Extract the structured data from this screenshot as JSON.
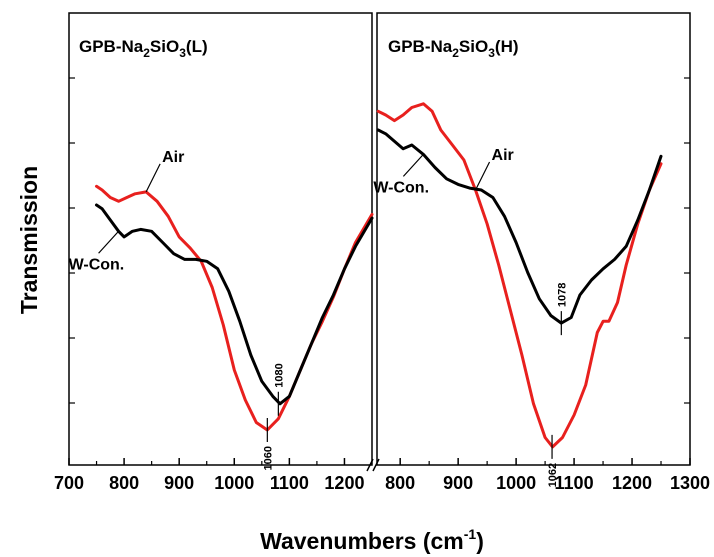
{
  "chart_data": {
    "type": "line",
    "xlabel_main": "Wavenumbers (cm",
    "xlabel_sup": "-1",
    "xlabel_close": ")",
    "ylabel": "Transmission",
    "grid": false,
    "legend": "none",
    "colors": {
      "Air": "#e8201e",
      "W-Con.": "#000000"
    },
    "panels": [
      {
        "title_prefix": "GPB-Na",
        "title_sub1": "2",
        "title_mid": "SiO",
        "title_sub2": "3",
        "title_suffix": "(L)",
        "xlim": [
          700,
          1250
        ],
        "ticks": [
          "700",
          "800",
          "900",
          "1000",
          "1100",
          "1200"
        ],
        "tick_values": [
          700,
          800,
          900,
          1000,
          1100,
          1200
        ],
        "ylim": [
          0,
          100
        ],
        "series": [
          {
            "name": "Air",
            "x": [
              750,
              760,
              775,
              790,
              805,
              820,
              840,
              860,
              880,
              900,
              920,
              940,
              960,
              980,
              1000,
              1020,
              1040,
              1060,
              1080,
              1100,
              1120,
              1140,
              1160,
              1180,
              1200,
              1220,
              1240,
              1250
            ],
            "y": [
              73,
              72,
              70,
              69,
              70,
              71,
              71.5,
              69,
              65,
              59.5,
              56.5,
              53,
              46,
              36,
              24,
              16,
              10,
              8,
              11,
              17,
              24,
              31,
              37,
              43.5,
              51,
              58,
              63,
              65.5
            ]
          },
          {
            "name": "W-Con.",
            "x": [
              750,
              760,
              775,
              790,
              800,
              815,
              830,
              850,
              870,
              890,
              910,
              930,
              950,
              970,
              990,
              1010,
              1030,
              1050,
              1070,
              1083,
              1100,
              1120,
              1140,
              1160,
              1180,
              1200,
              1220,
              1240,
              1250
            ],
            "y": [
              68,
              67,
              64,
              61,
              59.5,
              61,
              61.5,
              61,
              58,
              55,
              53.5,
              53.5,
              53,
              51,
              45,
              37,
              28,
              21,
              17,
              15,
              17,
              24,
              31,
              38,
              44,
              51,
              57,
              62,
              64.5
            ]
          }
        ],
        "annotations": [
          {
            "text": "Air",
            "series": "Air"
          },
          {
            "text": "W-Con.",
            "series": "W-Con."
          },
          {
            "text": "1060",
            "series": "Air",
            "x": 1060
          },
          {
            "text": "1080",
            "series": "W-Con.",
            "x": 1080
          }
        ]
      },
      {
        "title_prefix": "GPB-Na",
        "title_sub1": "2",
        "title_mid": "SiO",
        "title_sub2": "3",
        "title_suffix": "(H)",
        "xlim": [
          760,
          1300
        ],
        "ticks": [
          "800",
          "900",
          "1000",
          "1100",
          "1200",
          "1300"
        ],
        "tick_values": [
          800,
          900,
          1000,
          1100,
          1200,
          1300
        ],
        "ylim": [
          0,
          100
        ],
        "series": [
          {
            "name": "Air",
            "x": [
              762,
              775,
              790,
              805,
              820,
              840,
              855,
              870,
              890,
              910,
              930,
              950,
              970,
              990,
              1010,
              1030,
              1050,
              1063,
              1080,
              1100,
              1120,
              1140,
              1150,
              1160,
              1175,
              1190,
              1210,
              1230,
              1250
            ],
            "y": [
              93,
              92,
              90.5,
              92,
              94,
              95,
              93,
              88,
              84,
              80,
              72,
              63,
              52,
              40,
              28,
              15,
              6,
              3.5,
              6,
              12,
              20,
              34,
              37,
              37,
              42,
              52,
              63,
              72,
              79
            ]
          },
          {
            "name": "W-Con.",
            "x": [
              762,
              775,
              790,
              805,
              820,
              840,
              860,
              880,
              900,
              920,
              940,
              960,
              980,
              1000,
              1020,
              1040,
              1060,
              1078,
              1095,
              1110,
              1130,
              1150,
              1170,
              1190,
              1210,
              1230,
              1250
            ],
            "y": [
              88,
              87,
              85,
              83,
              84,
              81.5,
              78,
              75,
              73.5,
              72.5,
              72,
              70,
              65,
              58,
              50,
              43,
              38.5,
              36.5,
              38,
              44,
              48,
              51,
              53.5,
              57,
              64,
              72,
              81
            ]
          }
        ],
        "annotations": [
          {
            "text": "Air",
            "series": "Air"
          },
          {
            "text": "W-Con.",
            "series": "W-Con."
          },
          {
            "text": "1062",
            "series": "Air",
            "x": 1062
          },
          {
            "text": "1078",
            "series": "W-Con.",
            "x": 1078
          }
        ]
      }
    ]
  }
}
